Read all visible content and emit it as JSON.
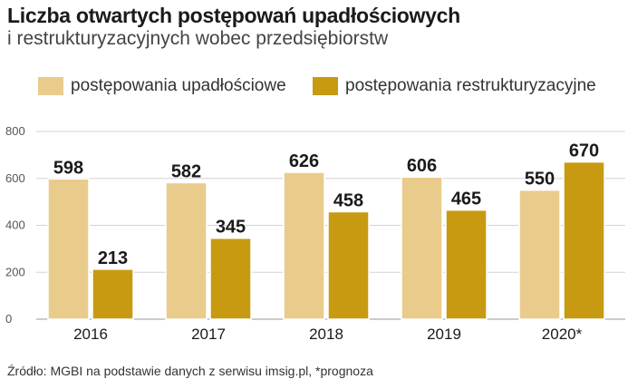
{
  "header": {
    "title": "Liczba otwartych postępowań upadłościowych",
    "subtitle": "i restrukturyzacyjnych wobec przedsiębiorstw"
  },
  "legend": {
    "items": [
      {
        "label": "postępowania upadłościowe",
        "color": "#e9cc8b"
      },
      {
        "label": "postępowania restrukturyzacyjne",
        "color": "#c79a12"
      }
    ]
  },
  "chart_data": {
    "type": "bar",
    "categories": [
      "2016",
      "2017",
      "2018",
      "2019",
      "2020*"
    ],
    "series": [
      {
        "name": "postępowania upadłościowe",
        "values": [
          598,
          582,
          626,
          606,
          550
        ],
        "color": "#e9cc8b"
      },
      {
        "name": "postępowania restrukturyzacyjne",
        "values": [
          213,
          345,
          458,
          465,
          670
        ],
        "color": "#c79a12"
      }
    ],
    "ylim": [
      0,
      800
    ],
    "yticks": [
      0,
      200,
      400,
      600,
      800
    ],
    "grid": true,
    "legend_position": "top-left",
    "title": "Liczba otwartych postępowań upadłościowych",
    "subtitle": "i restrukturyzacyjnych wobec przedsiębiorstw",
    "data_labels": true
  },
  "footer": {
    "source": "Źródło: MGBI na podstawie danych z serwisu imsig.pl, *prognoza"
  }
}
